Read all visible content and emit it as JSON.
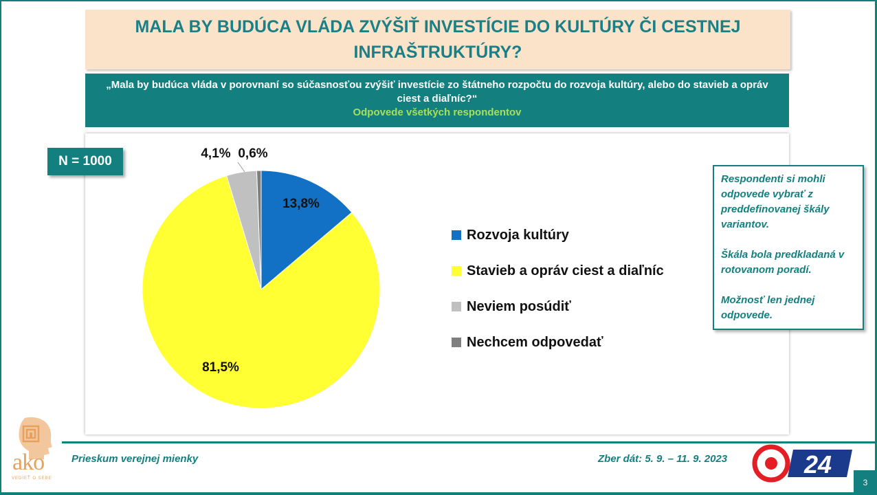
{
  "title": "MALA BY BUDÚCA VLÁDA ZVÝŠIŤ INVESTÍCIE DO KULTÚRY ČI CESTNEJ INFRAŠTRUKTÚRY?",
  "question": "„Mala by budúca vláda v porovnaní so súčasnosťou zvýšiť investície zo štátneho rozpočtu do rozvoja kultúry, alebo do stavieb a opráv ciest a diaľníc?“",
  "question_sub": "Odpovede všetkých respondentov",
  "sample": "N = 1000",
  "chart_data": {
    "type": "pie",
    "slices": [
      {
        "label": "Rozvoja kultúry",
        "value": 13.8,
        "value_label": "13,8%",
        "color": "#1271c4"
      },
      {
        "label": "Stavieb a opráv ciest a diaľníc",
        "value": 81.5,
        "value_label": "81,5%",
        "color": "#ffff33"
      },
      {
        "label": "Neviem posúdiť",
        "value": 4.1,
        "value_label": "4,1%",
        "color": "#c0c0c0"
      },
      {
        "label": "Nechcem odpovedať",
        "value": 0.6,
        "value_label": "0,6%",
        "color": "#7f7f7f"
      }
    ],
    "start": "12 o'clock, clockwise",
    "legend_position": "right"
  },
  "note": {
    "p1": "Respondenti si mohli odpovede vybrať z preddefinovanej škály variantov.",
    "p2": "Škála bola predkladaná v rotovanom poradí.",
    "p3": "Možnosť len jednej odpovede."
  },
  "footer": {
    "left": "Prieskum verejnej mienky",
    "right": "Zber dát: 5. 9. – 11. 9. 2023",
    "page": "3"
  },
  "logos": {
    "ako_text": "ako",
    "ako_tagline": "VEDIEŤ O SEBE",
    "tv_text": "24"
  },
  "colors": {
    "teal": "#137f7f",
    "title_bg": "#fbe3c9",
    "title_text": "#1a7f86",
    "accent_green": "#a6e05a"
  }
}
